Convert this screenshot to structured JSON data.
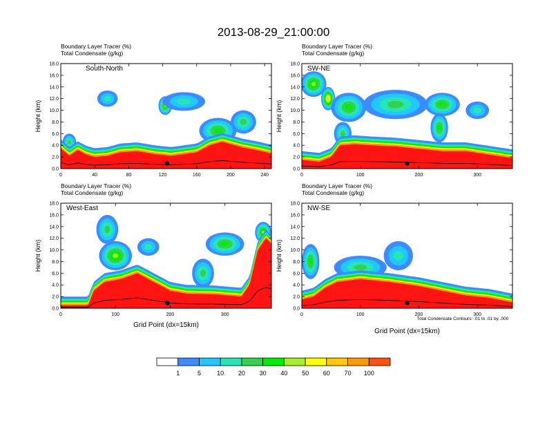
{
  "title": "2013-08-29_21:00:00",
  "colors": {
    "levels": [
      "#ffffff",
      "#3c8cff",
      "#20c8ff",
      "#28e6b4",
      "#34d24c",
      "#00ee00",
      "#a6ee2c",
      "#ffff00",
      "#ffc800",
      "#ff9a00",
      "#ff5010",
      "#ff1414",
      "#ff0000"
    ]
  },
  "chart_data": [
    {
      "type": "heatmap",
      "panel": "South-North",
      "line1": "Boundary Layer Tracer",
      "unit1": "(%)",
      "line2": "Total Condensate",
      "unit2": "(g/kg)",
      "ylabel": "Height (km)",
      "xlabel": "",
      "xlim": [
        0,
        248
      ],
      "ylim": [
        0,
        18
      ],
      "xticks": [
        "0",
        "40",
        "80",
        "120",
        "160",
        "200",
        "240"
      ],
      "xtick_values": [
        0,
        40,
        80,
        120,
        160,
        200,
        240
      ],
      "yticks": [
        "0.0",
        "2.0",
        "4.0",
        "6.0",
        "8.0",
        "10.0",
        "12.0",
        "14.0",
        "16.0",
        "18.0"
      ],
      "boundary_top_km": [
        [
          0,
          3.5
        ],
        [
          10,
          2.2
        ],
        [
          20,
          3.2
        ],
        [
          30,
          2.4
        ],
        [
          40,
          2.0
        ],
        [
          55,
          2.2
        ],
        [
          70,
          2.8
        ],
        [
          90,
          3.0
        ],
        [
          110,
          2.5
        ],
        [
          130,
          2.2
        ],
        [
          150,
          2.6
        ],
        [
          160,
          2.8
        ],
        [
          175,
          4.0
        ],
        [
          190,
          4.6
        ],
        [
          200,
          4.2
        ],
        [
          215,
          3.6
        ],
        [
          230,
          3.2
        ],
        [
          248,
          2.6
        ]
      ],
      "plumes": [
        {
          "x": 123,
          "y": 10.8,
          "rx": 8,
          "ry": 1.6,
          "v": 5
        },
        {
          "x": 55,
          "y": 12.0,
          "rx": 12,
          "ry": 1.4,
          "v": 2
        },
        {
          "x": 185,
          "y": 6.5,
          "rx": 22,
          "ry": 2.2,
          "v": 4
        },
        {
          "x": 145,
          "y": 11.5,
          "rx": 25,
          "ry": 1.6,
          "v": 2
        },
        {
          "x": 215,
          "y": 8.0,
          "rx": 15,
          "ry": 2.0,
          "v": 3
        },
        {
          "x": 10,
          "y": 4.5,
          "rx": 8,
          "ry": 1.5,
          "v": 3
        }
      ],
      "terrain_marker_x": 125
    },
    {
      "type": "heatmap",
      "panel": "SW-NE",
      "line1": "Boundary Layer Tracer",
      "unit1": "(%)",
      "line2": "Total Condensate",
      "unit2": "(g/kg)",
      "ylabel": "Height (km)",
      "xlabel": "",
      "xlim": [
        0,
        360
      ],
      "ylim": [
        0,
        18
      ],
      "xticks": [
        "0",
        "100",
        "200",
        "300"
      ],
      "xtick_values": [
        0,
        100,
        200,
        300
      ],
      "yticks": [
        "0.0",
        "2.0",
        "4.0",
        "6.0",
        "8.0",
        "10.0",
        "12.0",
        "14.0",
        "16.0",
        "18.0"
      ],
      "boundary_top_km": [
        [
          0,
          1.5
        ],
        [
          30,
          1.2
        ],
        [
          50,
          2.0
        ],
        [
          65,
          4.0
        ],
        [
          90,
          4.2
        ],
        [
          120,
          4.0
        ],
        [
          160,
          3.8
        ],
        [
          200,
          3.4
        ],
        [
          240,
          3.0
        ],
        [
          280,
          3.0
        ],
        [
          320,
          2.4
        ],
        [
          360,
          1.8
        ]
      ],
      "plumes": [
        {
          "x": 20,
          "y": 14.5,
          "rx": 22,
          "ry": 2.2,
          "v": 5
        },
        {
          "x": 45,
          "y": 12.0,
          "rx": 12,
          "ry": 2.0,
          "v": 7
        },
        {
          "x": 80,
          "y": 10.5,
          "rx": 30,
          "ry": 2.5,
          "v": 4
        },
        {
          "x": 160,
          "y": 11.0,
          "rx": 55,
          "ry": 2.5,
          "v": 3
        },
        {
          "x": 240,
          "y": 11.0,
          "rx": 30,
          "ry": 2.0,
          "v": 4
        },
        {
          "x": 235,
          "y": 7.0,
          "rx": 15,
          "ry": 2.5,
          "v": 4
        },
        {
          "x": 300,
          "y": 10.0,
          "rx": 20,
          "ry": 1.5,
          "v": 2
        },
        {
          "x": 70,
          "y": 6.0,
          "rx": 15,
          "ry": 2.0,
          "v": 3
        }
      ],
      "terrain_marker_x": 180
    },
    {
      "type": "heatmap",
      "panel": "West-East",
      "line1": "Boundary Layer Tracer",
      "unit1": "(%)",
      "line2": "Total Condensate",
      "unit2": "(g/kg)",
      "ylabel": "Height (km)",
      "xlabel": "Grid Point (dx=15km)",
      "xlim": [
        0,
        385
      ],
      "ylim": [
        0,
        18
      ],
      "xticks": [
        "0",
        "100",
        "200",
        "300"
      ],
      "xtick_values": [
        0,
        100,
        200,
        300
      ],
      "yticks": [
        "0.0",
        "2.0",
        "4.0",
        "6.0",
        "8.0",
        "10.0",
        "12.0",
        "14.0",
        "16.0",
        "18.0"
      ],
      "boundary_top_km": [
        [
          0,
          0.5
        ],
        [
          50,
          0.5
        ],
        [
          60,
          3.0
        ],
        [
          80,
          4.5
        ],
        [
          110,
          5.0
        ],
        [
          140,
          6.0
        ],
        [
          170,
          4.5
        ],
        [
          200,
          3.0
        ],
        [
          230,
          2.5
        ],
        [
          280,
          2.4
        ],
        [
          330,
          2.0
        ],
        [
          345,
          4.0
        ],
        [
          360,
          10.0
        ],
        [
          375,
          12.0
        ],
        [
          385,
          11.0
        ]
      ],
      "plumes": [
        {
          "x": 85,
          "y": 13.5,
          "rx": 20,
          "ry": 2.5,
          "v": 3
        },
        {
          "x": 100,
          "y": 9.0,
          "rx": 30,
          "ry": 2.5,
          "v": 5
        },
        {
          "x": 160,
          "y": 10.5,
          "rx": 20,
          "ry": 1.5,
          "v": 2
        },
        {
          "x": 300,
          "y": 11.0,
          "rx": 35,
          "ry": 2.0,
          "v": 4
        },
        {
          "x": 260,
          "y": 6.0,
          "rx": 20,
          "ry": 2.5,
          "v": 3
        },
        {
          "x": 370,
          "y": 13.0,
          "rx": 15,
          "ry": 1.8,
          "v": 5
        }
      ],
      "terrain_marker_x": 195
    },
    {
      "type": "heatmap",
      "panel": "NW-SE",
      "line1": "Boundary Layer Tracer",
      "unit1": "(%)",
      "line2": "Total Condensate",
      "unit2": "(g/kg)",
      "ylabel": "Height (km)",
      "xlabel": "Grid Point (dx=15km)",
      "xlim": [
        0,
        360
      ],
      "ylim": [
        0,
        18
      ],
      "xticks": [
        "0",
        "100",
        "200",
        "300"
      ],
      "xtick_values": [
        0,
        100,
        200,
        300
      ],
      "yticks": [
        "0.0",
        "2.0",
        "4.0",
        "6.0",
        "8.0",
        "10.0",
        "12.0",
        "14.0",
        "16.0",
        "18.0"
      ],
      "boundary_top_km": [
        [
          0,
          1.5
        ],
        [
          20,
          2.0
        ],
        [
          40,
          3.5
        ],
        [
          60,
          4.5
        ],
        [
          100,
          5.0
        ],
        [
          150,
          4.5
        ],
        [
          200,
          3.8
        ],
        [
          240,
          3.0
        ],
        [
          280,
          2.2
        ],
        [
          320,
          1.8
        ],
        [
          360,
          1.0
        ]
      ],
      "plumes": [
        {
          "x": 15,
          "y": 8.0,
          "rx": 15,
          "ry": 3.0,
          "v": 4
        },
        {
          "x": 100,
          "y": 7.0,
          "rx": 45,
          "ry": 2.0,
          "v": 3
        },
        {
          "x": 165,
          "y": 9.0,
          "rx": 25,
          "ry": 2.5,
          "v": 2
        },
        {
          "x": 330,
          "y": 1.5,
          "rx": 15,
          "ry": 1.0,
          "v": 5
        }
      ],
      "terrain_marker_x": 180
    }
  ],
  "contour_note": "Total Condensate Contours: .01 to .01 by .000",
  "colorbar": {
    "labels": [
      "1",
      "5",
      "10",
      "20",
      "30",
      "40",
      "50",
      "60",
      "70",
      "100"
    ]
  }
}
